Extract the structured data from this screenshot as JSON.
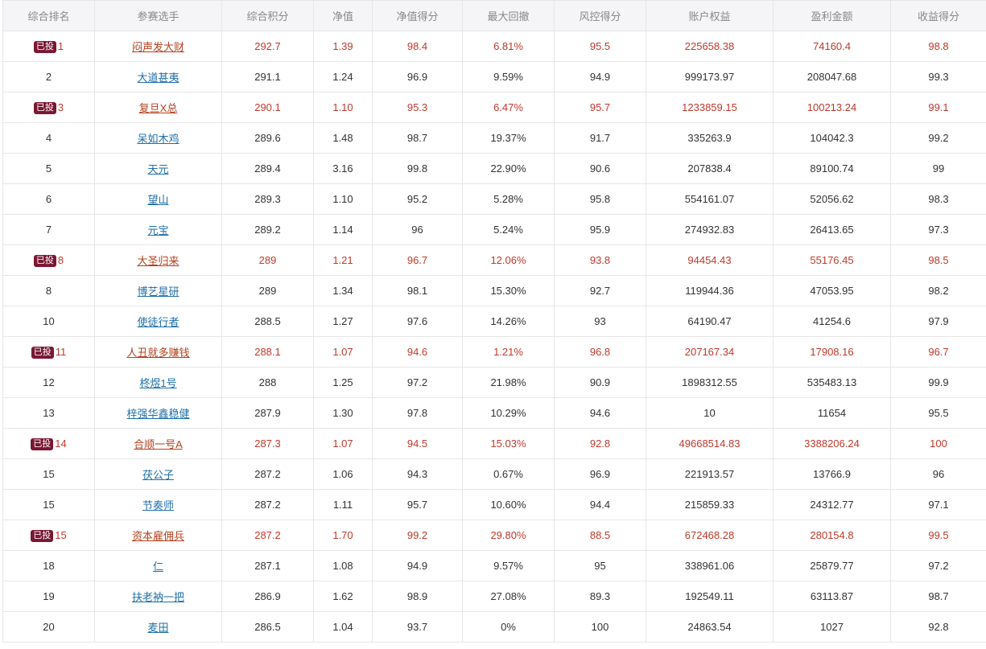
{
  "colors": {
    "highlight_text": "#c0392b",
    "link": "#1f6fa8",
    "badge_bg": "#7a1733",
    "header_bg": "#f5f5f7"
  },
  "table": {
    "headers": [
      "综合排名",
      "参赛选手",
      "综合积分",
      "净值",
      "净值得分",
      "最大回撤",
      "风控得分",
      "账户权益",
      "盈利金额",
      "收益得分"
    ],
    "rows": [
      {
        "badge": "已投",
        "rank": "1",
        "player": "闷声发大财",
        "score": "292.7",
        "nav": "1.39",
        "nav_score": "98.4",
        "max_dd": "6.81%",
        "risk_score": "95.5",
        "equity": "225658.38",
        "profit": "74160.4",
        "return_score": "98.8"
      },
      {
        "badge": "",
        "rank": "2",
        "player": "大道甚夷",
        "score": "291.1",
        "nav": "1.24",
        "nav_score": "96.9",
        "max_dd": "9.59%",
        "risk_score": "94.9",
        "equity": "999173.97",
        "profit": "208047.68",
        "return_score": "99.3"
      },
      {
        "badge": "已投",
        "rank": "3",
        "player": "复旦X总",
        "score": "290.1",
        "nav": "1.10",
        "nav_score": "95.3",
        "max_dd": "6.47%",
        "risk_score": "95.7",
        "equity": "1233859.15",
        "profit": "100213.24",
        "return_score": "99.1"
      },
      {
        "badge": "",
        "rank": "4",
        "player": "呆如木鸡",
        "score": "289.6",
        "nav": "1.48",
        "nav_score": "98.7",
        "max_dd": "19.37%",
        "risk_score": "91.7",
        "equity": "335263.9",
        "profit": "104042.3",
        "return_score": "99.2"
      },
      {
        "badge": "",
        "rank": "5",
        "player": "天元",
        "score": "289.4",
        "nav": "3.16",
        "nav_score": "99.8",
        "max_dd": "22.90%",
        "risk_score": "90.6",
        "equity": "207838.4",
        "profit": "89100.74",
        "return_score": "99"
      },
      {
        "badge": "",
        "rank": "6",
        "player": "望山",
        "score": "289.3",
        "nav": "1.10",
        "nav_score": "95.2",
        "max_dd": "5.28%",
        "risk_score": "95.8",
        "equity": "554161.07",
        "profit": "52056.62",
        "return_score": "98.3"
      },
      {
        "badge": "",
        "rank": "7",
        "player": "元宝",
        "score": "289.2",
        "nav": "1.14",
        "nav_score": "96",
        "max_dd": "5.24%",
        "risk_score": "95.9",
        "equity": "274932.83",
        "profit": "26413.65",
        "return_score": "97.3"
      },
      {
        "badge": "已投",
        "rank": "8",
        "player": "大圣归来",
        "score": "289",
        "nav": "1.21",
        "nav_score": "96.7",
        "max_dd": "12.06%",
        "risk_score": "93.8",
        "equity": "94454.43",
        "profit": "55176.45",
        "return_score": "98.5"
      },
      {
        "badge": "",
        "rank": "8",
        "player": "博艺星研",
        "score": "289",
        "nav": "1.34",
        "nav_score": "98.1",
        "max_dd": "15.30%",
        "risk_score": "92.7",
        "equity": "119944.36",
        "profit": "47053.95",
        "return_score": "98.2"
      },
      {
        "badge": "",
        "rank": "10",
        "player": "使徒行者",
        "score": "288.5",
        "nav": "1.27",
        "nav_score": "97.6",
        "max_dd": "14.26%",
        "risk_score": "93",
        "equity": "64190.47",
        "profit": "41254.6",
        "return_score": "97.9"
      },
      {
        "badge": "已投",
        "rank": "11",
        "player": "人丑就多赚钱",
        "score": "288.1",
        "nav": "1.07",
        "nav_score": "94.6",
        "max_dd": "1.21%",
        "risk_score": "96.8",
        "equity": "207167.34",
        "profit": "17908.16",
        "return_score": "96.7"
      },
      {
        "badge": "",
        "rank": "12",
        "player": "柊煜1号",
        "score": "288",
        "nav": "1.25",
        "nav_score": "97.2",
        "max_dd": "21.98%",
        "risk_score": "90.9",
        "equity": "1898312.55",
        "profit": "535483.13",
        "return_score": "99.9"
      },
      {
        "badge": "",
        "rank": "13",
        "player": "梓强华鑫稳健",
        "score": "287.9",
        "nav": "1.30",
        "nav_score": "97.8",
        "max_dd": "10.29%",
        "risk_score": "94.6",
        "equity": "10",
        "profit": "11654",
        "return_score": "95.5"
      },
      {
        "badge": "已投",
        "rank": "14",
        "player": "合顺一号A",
        "score": "287.3",
        "nav": "1.07",
        "nav_score": "94.5",
        "max_dd": "15.03%",
        "risk_score": "92.8",
        "equity": "49668514.83",
        "profit": "3388206.24",
        "return_score": "100"
      },
      {
        "badge": "",
        "rank": "15",
        "player": "茯公子",
        "score": "287.2",
        "nav": "1.06",
        "nav_score": "94.3",
        "max_dd": "0.67%",
        "risk_score": "96.9",
        "equity": "221913.57",
        "profit": "13766.9",
        "return_score": "96"
      },
      {
        "badge": "",
        "rank": "15",
        "player": "节奏师",
        "score": "287.2",
        "nav": "1.11",
        "nav_score": "95.7",
        "max_dd": "10.60%",
        "risk_score": "94.4",
        "equity": "215859.33",
        "profit": "24312.77",
        "return_score": "97.1"
      },
      {
        "badge": "已投",
        "rank": "15",
        "player": "资本雇佣兵",
        "score": "287.2",
        "nav": "1.70",
        "nav_score": "99.2",
        "max_dd": "29.80%",
        "risk_score": "88.5",
        "equity": "672468.28",
        "profit": "280154.8",
        "return_score": "99.5"
      },
      {
        "badge": "",
        "rank": "18",
        "player": "仁",
        "score": "287.1",
        "nav": "1.08",
        "nav_score": "94.9",
        "max_dd": "9.57%",
        "risk_score": "95",
        "equity": "338961.06",
        "profit": "25879.77",
        "return_score": "97.2"
      },
      {
        "badge": "",
        "rank": "19",
        "player": "扶老衲一把",
        "score": "286.9",
        "nav": "1.62",
        "nav_score": "98.9",
        "max_dd": "27.08%",
        "risk_score": "89.3",
        "equity": "192549.11",
        "profit": "63113.87",
        "return_score": "98.7"
      },
      {
        "badge": "",
        "rank": "20",
        "player": "麦田",
        "score": "286.5",
        "nav": "1.04",
        "nav_score": "93.7",
        "max_dd": "0%",
        "risk_score": "100",
        "equity": "24863.54",
        "profit": "1027",
        "return_score": "92.8"
      }
    ]
  }
}
